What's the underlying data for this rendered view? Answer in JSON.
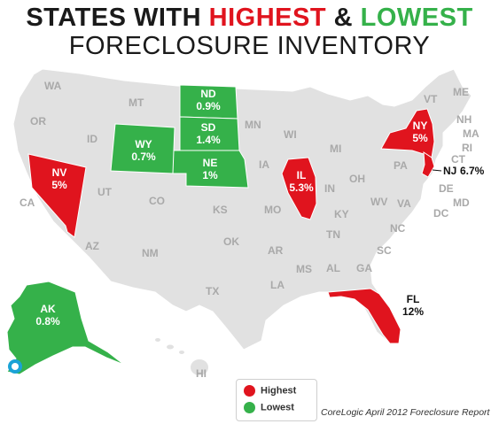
{
  "title": {
    "part1": "STATES WITH ",
    "highest": "HIGHEST",
    "amp": " & ",
    "lowest": "LOWEST",
    "line2": "FORECLOSURE INVENTORY"
  },
  "colors": {
    "highest": "#e0141e",
    "lowest": "#35b14a",
    "neutral": "#e1e1e1",
    "border": "#ffffff"
  },
  "highlighted_states": [
    {
      "abbr": "NV",
      "value": "5%",
      "category": "highest"
    },
    {
      "abbr": "IL",
      "value": "5.3%",
      "category": "highest"
    },
    {
      "abbr": "NY",
      "value": "5%",
      "category": "highest"
    },
    {
      "abbr": "NJ",
      "value": "6.7%",
      "category": "highest"
    },
    {
      "abbr": "FL",
      "value": "12%",
      "category": "highest"
    },
    {
      "abbr": "ND",
      "value": "0.9%",
      "category": "lowest"
    },
    {
      "abbr": "SD",
      "value": "1.4%",
      "category": "lowest"
    },
    {
      "abbr": "NE",
      "value": "1%",
      "category": "lowest"
    },
    {
      "abbr": "WY",
      "value": "0.7%",
      "category": "lowest"
    },
    {
      "abbr": "AK",
      "value": "0.8%",
      "category": "lowest"
    }
  ],
  "other_state_labels": [
    "WA",
    "OR",
    "CA",
    "ID",
    "MT",
    "UT",
    "AZ",
    "CO",
    "NM",
    "TX",
    "OK",
    "KS",
    "MN",
    "IA",
    "MO",
    "AR",
    "LA",
    "WI",
    "MI",
    "IN",
    "OH",
    "KY",
    "TN",
    "MS",
    "AL",
    "GA",
    "SC",
    "NC",
    "VA",
    "WV",
    "PA",
    "VT",
    "ME",
    "NH",
    "MA",
    "RI",
    "CT",
    "DE",
    "MD",
    "DC",
    "HI"
  ],
  "legend": {
    "highest_label": "Highest",
    "lowest_label": "Lowest"
  },
  "source": "CoreLogic April 2012 Foreclosure Report"
}
